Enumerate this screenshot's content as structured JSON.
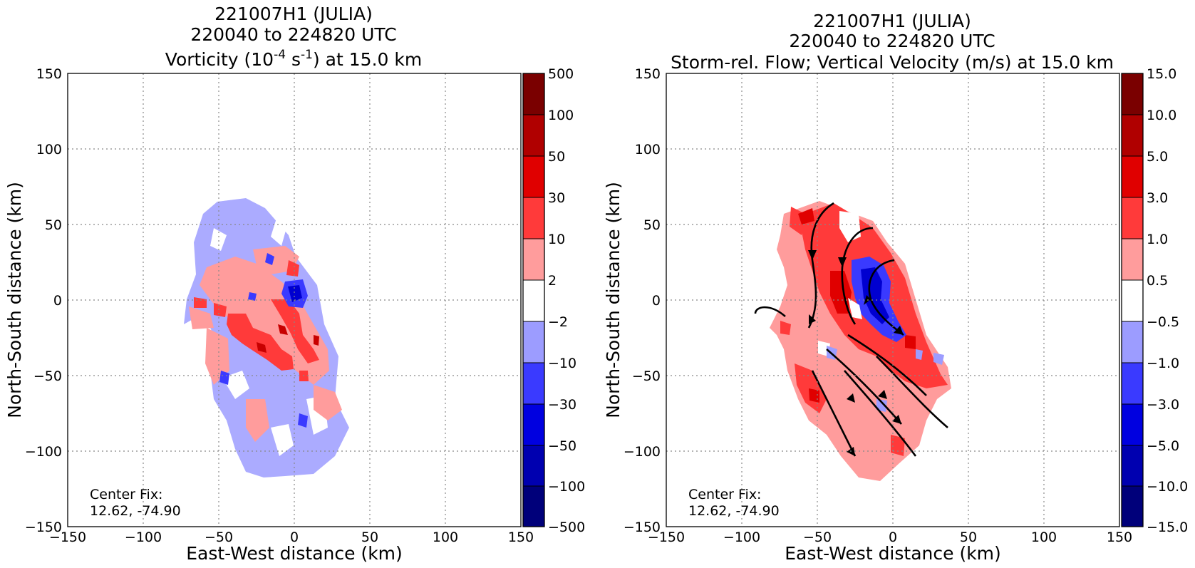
{
  "figure": {
    "panels": [
      {
        "id": "vorticity",
        "title_line1": "221007H1 (JULIA)",
        "title_line2": "220040 to 224820 UTC",
        "title_line3_prefix": "Vorticity (10",
        "title_line3_exp1": "-4",
        "title_line3_mid": " s",
        "title_line3_exp2": "-1",
        "title_line3_suffix": ") at 15.0 km",
        "center_fix_label": "Center Fix:",
        "center_fix_value": "12.62, -74.90",
        "colorbar_labels": [
          "500",
          "100",
          "50",
          "30",
          "10",
          "2",
          "−2",
          "−10",
          "−30",
          "−50",
          "−100",
          "−500"
        ]
      },
      {
        "id": "vertical-velocity",
        "title_line1": "221007H1 (JULIA)",
        "title_line2": "220040 to 224820 UTC",
        "title_line3": "Storm-rel. Flow; Vertical Velocity (m/s) at 15.0 km",
        "center_fix_label": "Center Fix:",
        "center_fix_value": "12.62, -74.90",
        "colorbar_labels": [
          "15.0",
          "10.0",
          "5.0",
          "3.0",
          "1.0",
          "0.5",
          "−0.5",
          "−1.0",
          "−3.0",
          "−5.0",
          "−10.0",
          "−15.0"
        ]
      }
    ],
    "colorbar_colors": [
      "#7a0000",
      "#b00000",
      "#e00000",
      "#ff3a3a",
      "#ff9c9c",
      "#ffffff",
      "#9c9cff",
      "#3a3aff",
      "#0000e0",
      "#0000b0",
      "#00007a"
    ]
  },
  "chart_data": [
    {
      "type": "heatmap",
      "title": "221007H1 (JULIA) 220040 to 224820 UTC Vorticity (10-4 s-1) at 15.0 km",
      "xlabel": "East-West distance (km)",
      "ylabel": "North-South distance (km)",
      "xlim": [
        -150,
        150
      ],
      "ylim": [
        -150,
        150
      ],
      "xticks": [
        "−150",
        "−100",
        "−50",
        "0",
        "50",
        "100",
        "150"
      ],
      "yticks": [
        "150",
        "100",
        "50",
        "0",
        "−50",
        "−100",
        "−150"
      ],
      "grid": true,
      "colorbar_levels": [
        500,
        100,
        50,
        30,
        10,
        2,
        -2,
        -10,
        -30,
        -50,
        -100,
        -500
      ],
      "annotation": "Center Fix: 12.62, -74.90"
    },
    {
      "type": "heatmap",
      "title": "221007H1 (JULIA) 220040 to 224820 UTC Storm-rel. Flow; Vertical Velocity (m/s) at 15.0 km",
      "xlabel": "East-West distance (km)",
      "ylabel": "North-South distance (km)",
      "xlim": [
        -150,
        150
      ],
      "ylim": [
        -150,
        150
      ],
      "xticks": [
        "−150",
        "−100",
        "−50",
        "0",
        "50",
        "100",
        "150"
      ],
      "yticks": [
        "150",
        "100",
        "50",
        "0",
        "−50",
        "−100",
        "−150"
      ],
      "grid": true,
      "colorbar_levels": [
        15.0,
        10.0,
        5.0,
        3.0,
        1.0,
        0.5,
        -0.5,
        -1.0,
        -3.0,
        -5.0,
        -10.0,
        -15.0
      ],
      "annotation": "Center Fix: 12.62, -74.90"
    }
  ]
}
